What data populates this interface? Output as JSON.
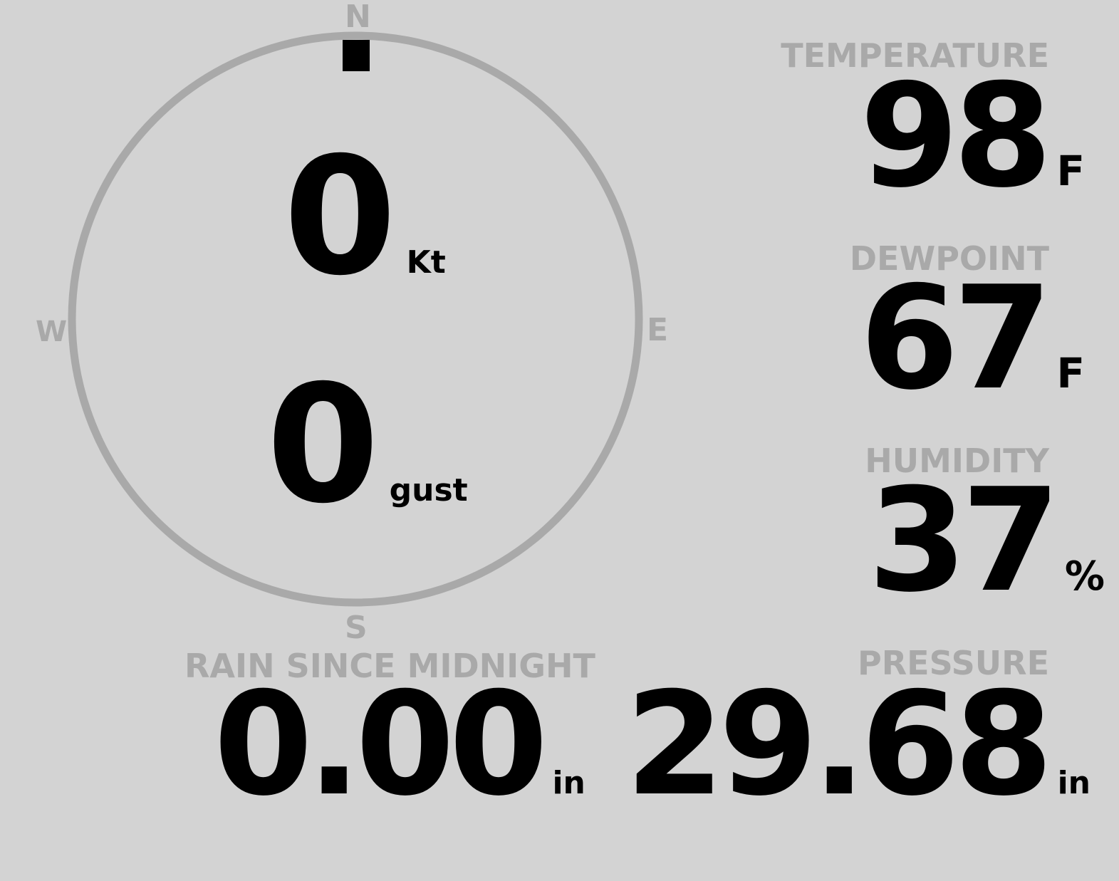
{
  "colors": {
    "background": "#d3d3d3",
    "label": "#a9a9a9",
    "value": "#000000",
    "ring": "#a9a9a9"
  },
  "wind": {
    "compass": {
      "n": "N",
      "s": "S",
      "e": "E",
      "w": "W"
    },
    "direction_deg": 0,
    "speed": "0",
    "speed_unit": "Kt",
    "gust": "0",
    "gust_unit": "gust"
  },
  "temperature": {
    "label": "TEMPERATURE",
    "value": "98",
    "unit": "F"
  },
  "dewpoint": {
    "label": "DEWPOINT",
    "value": "67",
    "unit": "F"
  },
  "humidity": {
    "label": "HUMIDITY",
    "value": "37",
    "unit": "%"
  },
  "rain": {
    "label": "RAIN SINCE MIDNIGHT",
    "value": "0.00",
    "unit": "in"
  },
  "pressure": {
    "label": "PRESSURE",
    "value": "29.68",
    "unit": "in"
  }
}
